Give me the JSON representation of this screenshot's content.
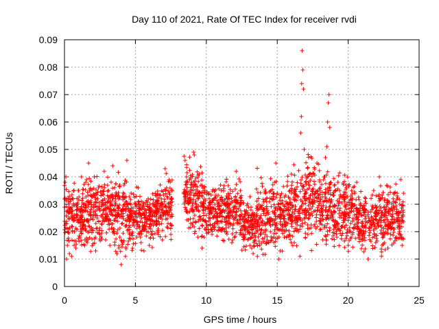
{
  "chart_data": {
    "type": "scatter",
    "title": "Day 110 of 2021, Rate Of TEC Index for receiver rvdi",
    "xlabel": "GPS time / hours",
    "ylabel": "ROTI / TECUs",
    "xlim": [
      0,
      25
    ],
    "ylim": [
      0,
      0.09
    ],
    "xticks": [
      "0",
      "5",
      "10",
      "15",
      "20",
      "25"
    ],
    "yticks": [
      "0",
      "0.01",
      "0.02",
      "0.03",
      "0.04",
      "0.05",
      "0.06",
      "0.07",
      "0.08",
      "0.09"
    ],
    "grid": true,
    "marker": "+",
    "color": "#ff0000",
    "series": [
      {
        "points": [
          [
            0.05,
            0.038
          ],
          [
            0.1,
            0.04
          ],
          [
            0.15,
            0.01
          ],
          [
            0.2,
            0.015
          ],
          [
            0.3,
            0.025
          ],
          [
            0.35,
            0.012
          ],
          [
            0.45,
            0.028
          ],
          [
            0.5,
            0.011
          ],
          [
            0.6,
            0.032
          ],
          [
            0.7,
            0.02
          ],
          [
            0.8,
            0.014
          ],
          [
            0.9,
            0.026
          ],
          [
            1.0,
            0.035
          ],
          [
            1.1,
            0.018
          ],
          [
            1.2,
            0.04
          ],
          [
            1.3,
            0.022
          ],
          [
            1.4,
            0.03
          ],
          [
            1.5,
            0.038
          ],
          [
            1.6,
            0.016
          ],
          [
            1.7,
            0.045
          ],
          [
            1.8,
            0.027
          ],
          [
            1.9,
            0.033
          ],
          [
            2.0,
            0.021
          ],
          [
            2.1,
            0.04
          ],
          [
            2.2,
            0.013
          ],
          [
            2.3,
            0.025
          ],
          [
            2.4,
            0.036
          ],
          [
            2.5,
            0.019
          ],
          [
            2.6,
            0.031
          ],
          [
            2.7,
            0.024
          ],
          [
            2.8,
            0.042
          ],
          [
            2.9,
            0.017
          ],
          [
            3.0,
            0.029
          ],
          [
            3.1,
            0.035
          ],
          [
            3.2,
            0.015
          ],
          [
            3.3,
            0.027
          ],
          [
            3.4,
            0.044
          ],
          [
            3.5,
            0.02
          ],
          [
            3.6,
            0.032
          ],
          [
            3.7,
            0.012
          ],
          [
            3.8,
            0.026
          ],
          [
            3.9,
            0.018
          ],
          [
            4.0,
            0.008
          ],
          [
            4.1,
            0.023
          ],
          [
            4.2,
            0.037
          ],
          [
            4.3,
            0.011
          ],
          [
            4.4,
            0.046
          ],
          [
            4.5,
            0.028
          ],
          [
            4.6,
            0.019
          ],
          [
            4.7,
            0.034
          ],
          [
            4.8,
            0.014
          ],
          [
            4.9,
            0.024
          ],
          [
            5.0,
            0.03
          ],
          [
            5.1,
            0.018
          ],
          [
            5.2,
            0.036
          ],
          [
            5.3,
            0.022
          ],
          [
            5.4,
            0.016
          ],
          [
            5.5,
            0.029
          ],
          [
            5.6,
            0.013
          ],
          [
            5.7,
            0.025
          ],
          [
            5.8,
            0.02
          ],
          [
            5.9,
            0.032
          ],
          [
            6.0,
            0.027
          ],
          [
            6.2,
            0.019
          ],
          [
            6.4,
            0.034
          ],
          [
            6.5,
            0.024
          ],
          [
            6.6,
            0.021
          ],
          [
            6.8,
            0.03
          ],
          [
            6.9,
            0.017
          ],
          [
            7.0,
            0.026
          ],
          [
            7.1,
            0.043
          ],
          [
            7.2,
            0.036
          ],
          [
            7.3,
            0.023
          ],
          [
            7.4,
            0.029
          ],
          [
            7.5,
            0.019
          ],
          [
            8.5,
            0.046
          ],
          [
            8.6,
            0.04
          ],
          [
            8.7,
            0.027
          ],
          [
            8.8,
            0.032
          ],
          [
            8.9,
            0.023
          ],
          [
            9.0,
            0.037
          ],
          [
            9.1,
            0.049
          ],
          [
            9.15,
            0.048
          ],
          [
            9.2,
            0.034
          ],
          [
            9.3,
            0.028
          ],
          [
            9.4,
            0.018
          ],
          [
            9.5,
            0.041
          ],
          [
            9.6,
            0.025
          ],
          [
            9.7,
            0.014
          ],
          [
            9.8,
            0.031
          ],
          [
            9.9,
            0.021
          ],
          [
            10.0,
            0.026
          ],
          [
            10.2,
            0.034
          ],
          [
            10.4,
            0.019
          ],
          [
            10.6,
            0.03
          ],
          [
            10.8,
            0.024
          ],
          [
            11.0,
            0.037
          ],
          [
            11.2,
            0.028
          ],
          [
            11.4,
            0.02
          ],
          [
            11.6,
            0.033
          ],
          [
            11.8,
            0.016
          ],
          [
            12.0,
            0.029
          ],
          [
            12.1,
            0.042
          ],
          [
            12.2,
            0.024
          ],
          [
            12.4,
            0.035
          ],
          [
            12.6,
            0.018
          ],
          [
            12.8,
            0.027
          ],
          [
            13.0,
            0.022
          ],
          [
            13.2,
            0.014
          ],
          [
            13.3,
            0.012
          ],
          [
            13.4,
            0.025
          ],
          [
            13.6,
            0.011
          ],
          [
            13.8,
            0.019
          ],
          [
            14.0,
            0.028
          ],
          [
            14.2,
            0.023
          ],
          [
            14.4,
            0.016
          ],
          [
            14.6,
            0.032
          ],
          [
            14.8,
            0.038
          ],
          [
            14.9,
            0.045
          ],
          [
            15.0,
            0.021
          ],
          [
            15.1,
            0.01
          ],
          [
            15.2,
            0.013
          ],
          [
            15.3,
            0.026
          ],
          [
            15.5,
            0.018
          ],
          [
            15.7,
            0.03
          ],
          [
            15.9,
            0.035
          ],
          [
            16.0,
            0.041
          ],
          [
            16.1,
            0.024
          ],
          [
            16.2,
            0.016
          ],
          [
            16.3,
            0.028
          ],
          [
            16.4,
            0.033
          ],
          [
            16.5,
            0.02
          ],
          [
            16.6,
            0.011
          ],
          [
            16.65,
            0.056
          ],
          [
            16.7,
            0.062
          ],
          [
            16.72,
            0.074
          ],
          [
            16.75,
            0.086
          ],
          [
            16.8,
            0.079
          ],
          [
            16.85,
            0.072
          ],
          [
            16.9,
            0.05
          ],
          [
            17.0,
            0.038
          ],
          [
            17.2,
            0.027
          ],
          [
            17.4,
            0.031
          ],
          [
            17.6,
            0.022
          ],
          [
            17.8,
            0.045
          ],
          [
            18.0,
            0.035
          ],
          [
            18.2,
            0.026
          ],
          [
            18.3,
            0.04
          ],
          [
            18.4,
            0.047
          ],
          [
            18.5,
            0.051
          ],
          [
            18.55,
            0.06
          ],
          [
            18.6,
            0.067
          ],
          [
            18.65,
            0.07
          ],
          [
            18.7,
            0.058
          ],
          [
            18.8,
            0.031
          ],
          [
            19.0,
            0.024
          ],
          [
            19.2,
            0.018
          ],
          [
            19.4,
            0.035
          ],
          [
            19.6,
            0.022
          ],
          [
            19.8,
            0.029
          ],
          [
            20.0,
            0.015
          ],
          [
            20.2,
            0.033
          ],
          [
            20.4,
            0.021
          ],
          [
            20.6,
            0.038
          ],
          [
            20.8,
            0.027
          ],
          [
            21.0,
            0.017
          ],
          [
            21.2,
            0.031
          ],
          [
            21.4,
            0.01
          ],
          [
            21.6,
            0.024
          ],
          [
            21.8,
            0.035
          ],
          [
            22.0,
            0.029
          ],
          [
            22.2,
            0.04
          ],
          [
            22.4,
            0.019
          ],
          [
            22.6,
            0.027
          ],
          [
            22.8,
            0.014
          ],
          [
            23.0,
            0.022
          ],
          [
            23.2,
            0.031
          ],
          [
            23.4,
            0.018
          ],
          [
            23.6,
            0.027
          ],
          [
            23.7,
            0.039
          ],
          [
            23.8,
            0.015
          ],
          [
            23.9,
            0.034
          ]
        ],
        "band": [
          [
            0,
            0.35,
            0.01,
            0.04
          ],
          [
            0.35,
            1.5,
            0.01,
            0.042
          ],
          [
            1.5,
            2.5,
            0.011,
            0.045
          ],
          [
            2.5,
            3.5,
            0.011,
            0.044
          ],
          [
            3.5,
            4.5,
            0.007,
            0.046
          ],
          [
            4.5,
            5.5,
            0.011,
            0.039
          ],
          [
            5.5,
            6.5,
            0.013,
            0.037
          ],
          [
            6.5,
            7.6,
            0.015,
            0.044
          ],
          [
            8.4,
            9.0,
            0.019,
            0.049
          ],
          [
            9.0,
            9.8,
            0.012,
            0.049
          ],
          [
            9.8,
            11.0,
            0.014,
            0.04
          ],
          [
            11.0,
            12.5,
            0.013,
            0.042
          ],
          [
            12.5,
            13.5,
            0.01,
            0.035
          ],
          [
            13.5,
            15.0,
            0.008,
            0.045
          ],
          [
            15.0,
            16.0,
            0.01,
            0.042
          ],
          [
            16.0,
            17.0,
            0.01,
            0.047
          ],
          [
            17.0,
            18.0,
            0.011,
            0.052
          ],
          [
            18.0,
            19.0,
            0.011,
            0.047
          ],
          [
            19.0,
            20.5,
            0.009,
            0.045
          ],
          [
            20.5,
            22.0,
            0.008,
            0.04
          ],
          [
            22.0,
            23.0,
            0.01,
            0.04
          ],
          [
            23.0,
            23.9,
            0.012,
            0.039
          ]
        ]
      }
    ]
  }
}
